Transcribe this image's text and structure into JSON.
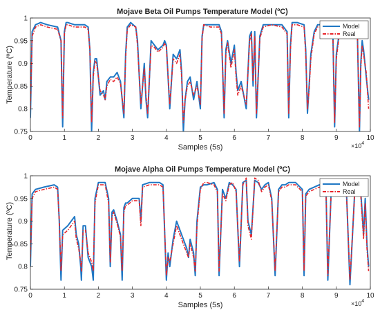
{
  "figure": {
    "background": "#ffffff",
    "axes_color": "#262626",
    "model_color": "#1f77c4",
    "real_color": "#e8262b"
  },
  "chart_data": [
    {
      "type": "line",
      "title": "Mojave Beta Oil Pumps Temperature Model (ºC)",
      "xlabel": "Samples (5s)",
      "ylabel": "Temperature (ºC)",
      "x_exponent_base": "×10",
      "x_exponent_power": "4",
      "xlim": [
        0,
        10
      ],
      "ylim": [
        0.75,
        1.0
      ],
      "xticks": [
        0,
        1,
        2,
        3,
        4,
        5,
        6,
        7,
        8,
        9,
        10
      ],
      "xtick_labels": [
        "0",
        "1",
        "2",
        "3",
        "4",
        "5",
        "6",
        "7",
        "8",
        "9",
        "10"
      ],
      "yticks": [
        0.75,
        0.8,
        0.85,
        0.9,
        0.95,
        1.0
      ],
      "ytick_labels": [
        "0.75",
        "0.8",
        "0.85",
        "0.9",
        "0.95",
        "1"
      ],
      "grid": false,
      "legend_position": "top-right",
      "series": [
        {
          "name": "Model",
          "style": "solid",
          "x": [
            0,
            0.05,
            0.15,
            0.3,
            0.5,
            0.8,
            0.9,
            0.95,
            1.0,
            1.05,
            1.1,
            1.3,
            1.6,
            1.7,
            1.75,
            1.8,
            1.85,
            1.9,
            1.95,
            2.05,
            2.15,
            2.2,
            2.25,
            2.35,
            2.45,
            2.55,
            2.65,
            2.75,
            2.8,
            2.85,
            2.95,
            3.1,
            3.15,
            3.25,
            3.35,
            3.4,
            3.45,
            3.55,
            3.65,
            3.75,
            3.9,
            3.95,
            4.0,
            4.1,
            4.2,
            4.3,
            4.4,
            4.45,
            4.5,
            4.55,
            4.62,
            4.7,
            4.8,
            4.9,
            5.0,
            5.05,
            5.1,
            5.3,
            5.55,
            5.62,
            5.7,
            5.75,
            5.8,
            5.9,
            6.0,
            6.05,
            6.1,
            6.2,
            6.35,
            6.45,
            6.5,
            6.55,
            6.6,
            6.65,
            6.75,
            6.85,
            7.1,
            7.4,
            7.55,
            7.6,
            7.65,
            7.7,
            7.85,
            8.05,
            8.1,
            8.15,
            8.2,
            8.25,
            8.35,
            8.45,
            8.6,
            8.8,
            8.9,
            8.95,
            9.0,
            9.1,
            9.3,
            9.55,
            9.62,
            9.68,
            9.72,
            9.76,
            9.8,
            9.88,
            9.95
          ],
          "y": [
            0.78,
            0.97,
            0.985,
            0.99,
            0.985,
            0.98,
            0.95,
            0.76,
            0.97,
            0.99,
            0.99,
            0.985,
            0.985,
            0.98,
            0.93,
            0.75,
            0.88,
            0.91,
            0.91,
            0.83,
            0.84,
            0.82,
            0.86,
            0.87,
            0.87,
            0.88,
            0.86,
            0.78,
            0.92,
            0.98,
            0.99,
            0.98,
            0.95,
            0.8,
            0.9,
            0.82,
            0.78,
            0.95,
            0.94,
            0.93,
            0.94,
            0.95,
            0.94,
            0.8,
            0.92,
            0.91,
            0.93,
            0.88,
            0.75,
            0.82,
            0.86,
            0.87,
            0.82,
            0.86,
            0.8,
            0.96,
            0.985,
            0.985,
            0.985,
            0.97,
            0.78,
            0.93,
            0.95,
            0.9,
            0.94,
            0.88,
            0.84,
            0.86,
            0.8,
            0.96,
            0.97,
            0.85,
            0.97,
            0.78,
            0.96,
            0.985,
            0.985,
            0.985,
            0.97,
            0.78,
            0.94,
            0.99,
            0.99,
            0.985,
            0.93,
            0.79,
            0.85,
            0.92,
            0.97,
            0.985,
            0.985,
            0.98,
            0.96,
            0.76,
            0.92,
            0.975,
            0.985,
            0.985,
            0.965,
            0.75,
            0.9,
            0.95,
            0.93,
            0.87,
            0.82
          ]
        },
        {
          "name": "Real",
          "style": "dashed",
          "x": [
            0,
            0.05,
            0.15,
            0.3,
            0.5,
            0.8,
            0.9,
            0.95,
            1.0,
            1.05,
            1.1,
            1.3,
            1.6,
            1.7,
            1.75,
            1.8,
            1.85,
            1.9,
            1.95,
            2.05,
            2.15,
            2.2,
            2.25,
            2.35,
            2.45,
            2.55,
            2.65,
            2.75,
            2.8,
            2.85,
            2.95,
            3.1,
            3.15,
            3.25,
            3.35,
            3.4,
            3.45,
            3.55,
            3.65,
            3.75,
            3.9,
            3.95,
            4.0,
            4.1,
            4.2,
            4.3,
            4.4,
            4.45,
            4.5,
            4.55,
            4.62,
            4.7,
            4.8,
            4.9,
            5.0,
            5.05,
            5.1,
            5.3,
            5.55,
            5.62,
            5.7,
            5.75,
            5.8,
            5.9,
            6.0,
            6.05,
            6.1,
            6.2,
            6.35,
            6.45,
            6.5,
            6.55,
            6.6,
            6.65,
            6.75,
            6.85,
            7.1,
            7.4,
            7.55,
            7.6,
            7.65,
            7.7,
            7.85,
            8.05,
            8.1,
            8.15,
            8.2,
            8.25,
            8.35,
            8.45,
            8.6,
            8.8,
            8.9,
            8.95,
            9.0,
            9.1,
            9.3,
            9.55,
            9.62,
            9.68,
            9.72,
            9.76,
            9.8,
            9.88,
            9.95
          ],
          "y": [
            0.8,
            0.96,
            0.98,
            0.985,
            0.98,
            0.975,
            0.95,
            0.78,
            0.965,
            0.985,
            0.985,
            0.98,
            0.98,
            0.975,
            0.93,
            0.77,
            0.87,
            0.905,
            0.9,
            0.84,
            0.83,
            0.82,
            0.85,
            0.865,
            0.86,
            0.87,
            0.855,
            0.79,
            0.91,
            0.975,
            0.985,
            0.98,
            0.94,
            0.81,
            0.89,
            0.83,
            0.79,
            0.94,
            0.935,
            0.925,
            0.935,
            0.945,
            0.935,
            0.81,
            0.91,
            0.9,
            0.92,
            0.87,
            0.77,
            0.82,
            0.85,
            0.86,
            0.83,
            0.85,
            0.81,
            0.955,
            0.985,
            0.98,
            0.98,
            0.965,
            0.79,
            0.92,
            0.945,
            0.89,
            0.93,
            0.87,
            0.83,
            0.85,
            0.81,
            0.95,
            0.965,
            0.86,
            0.96,
            0.79,
            0.955,
            0.98,
            0.985,
            0.98,
            0.965,
            0.79,
            0.93,
            0.985,
            0.985,
            0.98,
            0.92,
            0.8,
            0.84,
            0.91,
            0.965,
            0.98,
            0.98,
            0.975,
            0.955,
            0.77,
            0.91,
            0.97,
            0.98,
            0.985,
            0.96,
            0.76,
            0.89,
            0.94,
            0.92,
            0.88,
            0.8
          ]
        }
      ]
    },
    {
      "type": "line",
      "title": "Mojave Alpha Oil Pumps Temperature Model (ºC)",
      "xlabel": "Samples (5s)",
      "ylabel": "Temperature (ºC)",
      "x_exponent_base": "×10",
      "x_exponent_power": "4",
      "xlim": [
        0,
        10
      ],
      "ylim": [
        0.75,
        1.0
      ],
      "xticks": [
        0,
        1,
        2,
        3,
        4,
        5,
        6,
        7,
        8,
        9,
        10
      ],
      "xtick_labels": [
        "0",
        "1",
        "2",
        "3",
        "4",
        "5",
        "6",
        "7",
        "8",
        "9",
        "10"
      ],
      "yticks": [
        0.75,
        0.8,
        0.85,
        0.9,
        0.95,
        1.0
      ],
      "ytick_labels": [
        "0.75",
        "0.8",
        "0.85",
        "0.9",
        "0.95",
        "1"
      ],
      "grid": false,
      "legend_position": "top-right",
      "series": [
        {
          "name": "Model",
          "style": "solid",
          "x": [
            0,
            0.05,
            0.15,
            0.4,
            0.7,
            0.8,
            0.85,
            0.9,
            0.95,
            1.1,
            1.3,
            1.35,
            1.42,
            1.48,
            1.5,
            1.55,
            1.62,
            1.7,
            1.8,
            1.85,
            1.9,
            2.0,
            2.2,
            2.3,
            2.35,
            2.4,
            2.45,
            2.55,
            2.65,
            2.7,
            2.75,
            2.8,
            2.85,
            3.0,
            3.2,
            3.25,
            3.3,
            3.5,
            3.8,
            3.9,
            4.0,
            4.05,
            4.1,
            4.2,
            4.3,
            4.4,
            4.5,
            4.6,
            4.65,
            4.7,
            4.8,
            4.85,
            4.9,
            5.0,
            5.1,
            5.2,
            5.4,
            5.5,
            5.55,
            5.65,
            5.75,
            5.85,
            5.95,
            6.05,
            6.15,
            6.25,
            6.35,
            6.4,
            6.5,
            6.6,
            6.7,
            6.8,
            6.9,
            7.0,
            7.1,
            7.2,
            7.3,
            7.4,
            7.5,
            7.6,
            7.8,
            8.0,
            8.05,
            8.1,
            8.2,
            8.5,
            8.6,
            8.7,
            8.75,
            8.85,
            9.0,
            9.1,
            9.3,
            9.4,
            9.55,
            9.6,
            9.65,
            9.7,
            9.75,
            9.8,
            9.85,
            9.9,
            9.95
          ],
          "y": [
            0.8,
            0.96,
            0.97,
            0.975,
            0.98,
            0.975,
            0.9,
            0.77,
            0.88,
            0.89,
            0.91,
            0.87,
            0.85,
            0.8,
            0.77,
            0.89,
            0.89,
            0.82,
            0.8,
            0.77,
            0.95,
            0.985,
            0.985,
            0.95,
            0.8,
            0.92,
            0.925,
            0.9,
            0.87,
            0.77,
            0.93,
            0.94,
            0.94,
            0.95,
            0.95,
            0.9,
            0.98,
            0.985,
            0.985,
            0.98,
            0.77,
            0.83,
            0.8,
            0.86,
            0.9,
            0.88,
            0.86,
            0.84,
            0.82,
            0.86,
            0.83,
            0.78,
            0.9,
            0.975,
            0.98,
            0.98,
            0.985,
            0.97,
            0.78,
            0.97,
            0.95,
            0.985,
            0.98,
            0.97,
            0.8,
            0.985,
            0.99,
            0.9,
            0.87,
            0.99,
            0.985,
            0.97,
            0.98,
            0.985,
            0.95,
            0.78,
            0.97,
            0.98,
            0.98,
            0.985,
            0.985,
            0.97,
            0.78,
            0.96,
            0.97,
            0.98,
            0.975,
            0.96,
            0.77,
            0.97,
            0.98,
            0.98,
            0.96,
            0.76,
            0.98,
            0.99,
            0.98,
            0.985,
            0.93,
            0.87,
            0.95,
            0.85,
            0.8
          ]
        },
        {
          "name": "Real",
          "style": "dashed",
          "x": [
            0,
            0.05,
            0.15,
            0.4,
            0.7,
            0.8,
            0.85,
            0.9,
            0.95,
            1.1,
            1.3,
            1.35,
            1.42,
            1.48,
            1.5,
            1.55,
            1.62,
            1.7,
            1.8,
            1.85,
            1.9,
            2.0,
            2.2,
            2.3,
            2.35,
            2.4,
            2.45,
            2.55,
            2.65,
            2.7,
            2.75,
            2.8,
            2.85,
            3.0,
            3.2,
            3.25,
            3.3,
            3.5,
            3.8,
            3.9,
            4.0,
            4.05,
            4.1,
            4.2,
            4.3,
            4.4,
            4.5,
            4.6,
            4.65,
            4.7,
            4.8,
            4.85,
            4.9,
            5.0,
            5.1,
            5.2,
            5.4,
            5.5,
            5.55,
            5.65,
            5.75,
            5.85,
            5.95,
            6.05,
            6.15,
            6.25,
            6.35,
            6.4,
            6.5,
            6.6,
            6.7,
            6.8,
            6.9,
            7.0,
            7.1,
            7.2,
            7.3,
            7.4,
            7.5,
            7.6,
            7.8,
            8.0,
            8.05,
            8.1,
            8.2,
            8.5,
            8.6,
            8.7,
            8.75,
            8.85,
            9.0,
            9.1,
            9.3,
            9.4,
            9.55,
            9.6,
            9.65,
            9.7,
            9.75,
            9.8,
            9.85,
            9.9,
            9.95
          ],
          "y": [
            0.82,
            0.95,
            0.965,
            0.97,
            0.975,
            0.97,
            0.9,
            0.79,
            0.87,
            0.88,
            0.9,
            0.86,
            0.84,
            0.81,
            0.79,
            0.88,
            0.88,
            0.83,
            0.81,
            0.79,
            0.94,
            0.98,
            0.98,
            0.94,
            0.81,
            0.91,
            0.92,
            0.895,
            0.865,
            0.79,
            0.92,
            0.935,
            0.935,
            0.945,
            0.945,
            0.89,
            0.975,
            0.98,
            0.98,
            0.975,
            0.78,
            0.82,
            0.81,
            0.85,
            0.89,
            0.87,
            0.85,
            0.83,
            0.82,
            0.85,
            0.82,
            0.79,
            0.89,
            0.97,
            0.985,
            0.985,
            0.98,
            0.965,
            0.79,
            0.96,
            0.945,
            0.98,
            0.985,
            0.965,
            0.81,
            0.98,
            0.995,
            0.89,
            0.86,
            0.995,
            0.99,
            0.965,
            0.975,
            0.98,
            0.945,
            0.79,
            0.965,
            0.975,
            0.975,
            0.98,
            0.98,
            0.965,
            0.79,
            0.955,
            0.965,
            0.975,
            0.97,
            0.955,
            0.78,
            0.965,
            0.975,
            0.975,
            0.955,
            0.77,
            0.975,
            0.985,
            0.99,
            0.98,
            0.92,
            0.86,
            0.94,
            0.84,
            0.79
          ]
        }
      ]
    }
  ]
}
